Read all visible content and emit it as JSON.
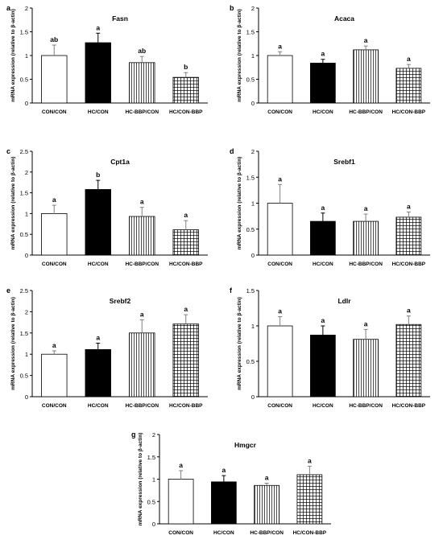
{
  "chart_data": [
    {
      "panel_label": "a",
      "title": "Fasn",
      "type": "bar",
      "ylabel": "mRNA expression (relative to β-actin)",
      "xlabel": "",
      "ylim": [
        0,
        2
      ],
      "yticks": [
        "0",
        "0.5",
        "1",
        "1.5",
        "2"
      ],
      "categories": [
        "CON/CON",
        "HC/CON",
        "HC-BBP/CON",
        "HC/CON-BBP"
      ],
      "values": [
        1.0,
        1.27,
        0.85,
        0.54
      ],
      "errors": [
        0.22,
        0.2,
        0.13,
        0.1
      ],
      "sig_labels": [
        "ab",
        "a",
        "ab",
        "b"
      ]
    },
    {
      "panel_label": "b",
      "title": "Acaca",
      "type": "bar",
      "ylabel": "mRNA expression (relative to β-actin)",
      "xlabel": "",
      "ylim": [
        0,
        2
      ],
      "yticks": [
        "0",
        "0.5",
        "1",
        "1.5",
        "2"
      ],
      "categories": [
        "CON/CON",
        "HC/CON",
        "HC-BBP/CON",
        "HC/CON-BBP"
      ],
      "values": [
        1.0,
        0.84,
        1.12,
        0.73
      ],
      "errors": [
        0.08,
        0.08,
        0.08,
        0.08
      ],
      "sig_labels": [
        "a",
        "a",
        "a",
        "a"
      ]
    },
    {
      "panel_label": "c",
      "title": "Cpt1a",
      "type": "bar",
      "ylabel": "mRNA expression (relative to β-actin)",
      "xlabel": "",
      "ylim": [
        0,
        2.5
      ],
      "yticks": [
        "0",
        "0.5",
        "1",
        "1.5",
        "2",
        "2.5"
      ],
      "categories": [
        "CON/CON",
        "HC/CON",
        "HC-BBP/CON",
        "HC/CON-BBP"
      ],
      "values": [
        1.0,
        1.58,
        0.93,
        0.61
      ],
      "errors": [
        0.2,
        0.22,
        0.22,
        0.22
      ],
      "sig_labels": [
        "a",
        "b",
        "a",
        "a"
      ]
    },
    {
      "panel_label": "d",
      "title": "Srebf1",
      "type": "bar",
      "ylabel": "mRNA expression (relative to β-actin)",
      "xlabel": "",
      "ylim": [
        0,
        2
      ],
      "yticks": [
        "0",
        "0.5",
        "1",
        "1.5",
        "2"
      ],
      "categories": [
        "CON/CON",
        "HC/CON",
        "HC-BBP/CON",
        "HC/CON-BBP"
      ],
      "values": [
        1.0,
        0.65,
        0.65,
        0.73
      ],
      "errors": [
        0.36,
        0.16,
        0.14,
        0.1
      ],
      "sig_labels": [
        "a",
        "a",
        "a",
        "a"
      ]
    },
    {
      "panel_label": "e",
      "title": "Srebf2",
      "type": "bar",
      "ylabel": "mRNA expression (relative to β-actin)",
      "xlabel": "",
      "ylim": [
        0,
        2.5
      ],
      "yticks": [
        "0",
        "0.5",
        "1",
        "1.5",
        "2",
        "2.5"
      ],
      "categories": [
        "CON/CON",
        "HC/CON",
        "HC-BBP/CON",
        "HC/CON-BBP"
      ],
      "values": [
        1.0,
        1.11,
        1.5,
        1.71
      ],
      "errors": [
        0.08,
        0.15,
        0.31,
        0.22
      ],
      "sig_labels": [
        "a",
        "a",
        "a",
        "a"
      ]
    },
    {
      "panel_label": "f",
      "title": "Ldlr",
      "type": "bar",
      "ylabel": "mRNA expression (relative to β-actin)",
      "xlabel": "",
      "ylim": [
        0,
        1.5
      ],
      "yticks": [
        "0",
        "0.5",
        "1",
        "1.5"
      ],
      "categories": [
        "CON/CON",
        "HC/CON",
        "HC-BBP/CON",
        "HC/CON-BBP"
      ],
      "values": [
        1.0,
        0.87,
        0.81,
        1.02
      ],
      "errors": [
        0.13,
        0.13,
        0.14,
        0.12
      ],
      "sig_labels": [
        "a",
        "a",
        "a",
        "a"
      ]
    },
    {
      "panel_label": "g",
      "title": "Hmgcr",
      "type": "bar",
      "ylabel": "mRNA expression (relative to β-actin)",
      "xlabel": "",
      "ylim": [
        0,
        2
      ],
      "yticks": [
        "0",
        "0.5",
        "1",
        "1.5",
        "2"
      ],
      "categories": [
        "CON/CON",
        "HC/CON",
        "HC-BBP/CON",
        "HC/CON-BBP"
      ],
      "values": [
        1.0,
        0.94,
        0.86,
        1.1
      ],
      "errors": [
        0.19,
        0.14,
        0.05,
        0.19
      ],
      "sig_labels": [
        "a",
        "a",
        "a",
        "a"
      ]
    }
  ]
}
